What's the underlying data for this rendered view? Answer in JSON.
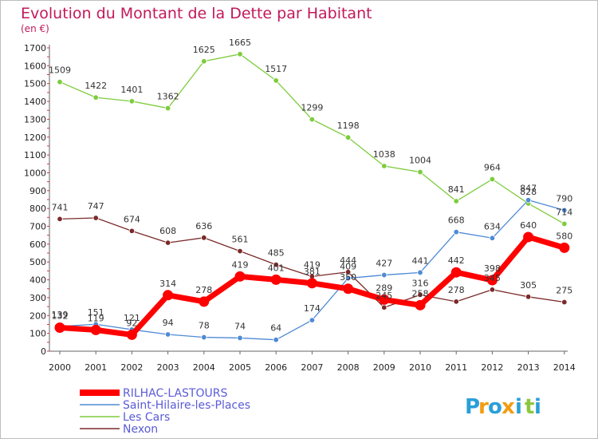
{
  "chart_data": {
    "type": "line",
    "title": "Evolution du Montant de la Dette par Habitant",
    "subtitle": "(en €)",
    "categories": [
      "2000",
      "2001",
      "2002",
      "2003",
      "2004",
      "2005",
      "2006",
      "2007",
      "2008",
      "2009",
      "2010",
      "2011",
      "2012",
      "2013",
      "2014"
    ],
    "y_ticks": [
      "0",
      "100",
      "200",
      "300",
      "400",
      "500",
      "600",
      "700",
      "800",
      "900",
      "1000",
      "1100",
      "1200",
      "1300",
      "1400",
      "1500",
      "1600",
      "1700"
    ],
    "ylim": [
      0,
      1700
    ],
    "grid": false,
    "legend_position": "bottom-left",
    "series": [
      {
        "name": "RILHAC-LASTOURS",
        "color": "#ff0000",
        "values": [
          132,
          119,
          92,
          314,
          278,
          419,
          401,
          381,
          350,
          289,
          258,
          442,
          398,
          640,
          580
        ],
        "labels": [
          "132",
          "119",
          "92",
          "314",
          "278",
          "419",
          "401",
          "381",
          "350",
          "289",
          "258",
          "442",
          "398",
          "640",
          "580"
        ]
      },
      {
        "name": "Saint-Hilaire-les-Places",
        "color": "#4f8ad6",
        "values": [
          139,
          151,
          121,
          94,
          78,
          74,
          64,
          174,
          409,
          427,
          441,
          668,
          634,
          847,
          790
        ],
        "labels": [
          "139",
          "151",
          "121",
          "94",
          "78",
          "74",
          "64",
          "174",
          "409",
          "427",
          "441",
          "668",
          "634",
          "847",
          "790"
        ]
      },
      {
        "name": "Les Cars",
        "color": "#7dcc3c",
        "values": [
          1509,
          1422,
          1401,
          1362,
          1625,
          1665,
          1517,
          1299,
          1198,
          1038,
          1004,
          841,
          964,
          828,
          714
        ],
        "labels": [
          "1509",
          "1422",
          "1401",
          "1362",
          "1625",
          "1665",
          "1517",
          "1299",
          "1198",
          "1038",
          "1004",
          "841",
          "964",
          "828",
          "714"
        ]
      },
      {
        "name": "Nexon",
        "color": "#7b2a2a",
        "values": [
          741,
          747,
          674,
          608,
          636,
          561,
          485,
          419,
          444,
          245,
          316,
          278,
          345,
          305,
          275
        ],
        "labels": [
          "741",
          "747",
          "674",
          "608",
          "636",
          "561",
          "485",
          "419",
          "444",
          "245",
          "316",
          "278",
          "345",
          "305",
          "275"
        ]
      }
    ]
  },
  "logo": {
    "letters": [
      "P",
      "r",
      "o",
      "x",
      "i",
      "t",
      "i"
    ],
    "colors": [
      "#2a9fd8",
      "#f39c12",
      "#2a9fd8",
      "#f39c12",
      "#2a9fd8",
      "#8cc63f",
      "#2a9fd8"
    ]
  }
}
